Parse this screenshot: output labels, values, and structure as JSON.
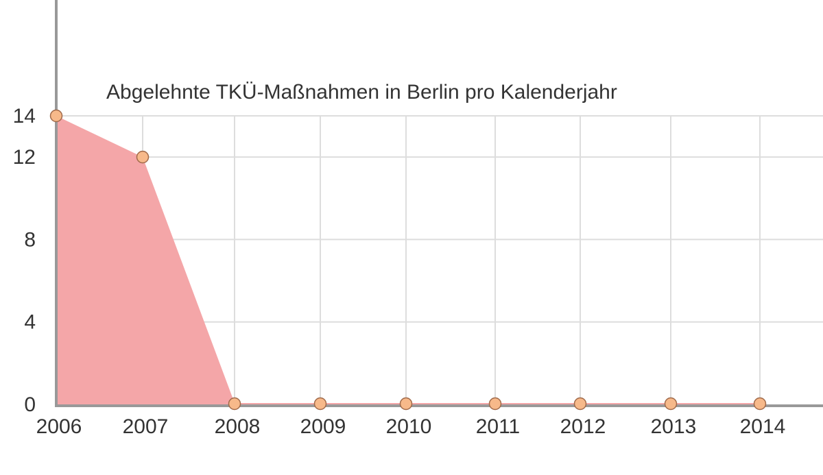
{
  "chart_data": {
    "type": "area",
    "title": "Abgelehnte TKÜ-Maßnahmen in Berlin pro Kalenderjahr",
    "x": [
      "2006",
      "2007",
      "2008",
      "2009",
      "2010",
      "2011",
      "2012",
      "2013",
      "2014"
    ],
    "series": [
      {
        "values": [
          14,
          12,
          0,
          0,
          0,
          0,
          0,
          0,
          0
        ]
      }
    ],
    "yticks": [
      0,
      4,
      8,
      12,
      14
    ],
    "ylim": [
      0,
      14
    ],
    "grid": true,
    "colors": {
      "area": "#f4a6a8",
      "marker_fill": "#f7b98a",
      "marker_stroke": "#a06a4a",
      "axis": "#999999",
      "grid": "#dddddd"
    }
  }
}
